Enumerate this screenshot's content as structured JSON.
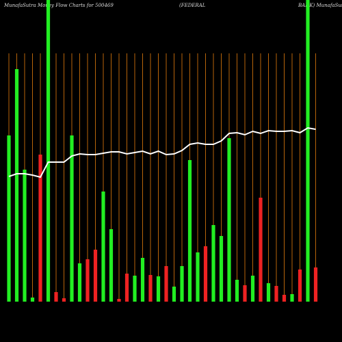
{
  "chart_data": {
    "type": "bar",
    "title": [
      "MunafaSutra  Money Flow  Charts for 500469",
      "(FEDERAL",
      "BANK) MunafaSutra"
    ],
    "categories": [
      null,
      null,
      null,
      null,
      null,
      null,
      null,
      null,
      null,
      null,
      null,
      null,
      null,
      null,
      null,
      null,
      null,
      null,
      null,
      null,
      null,
      null,
      null,
      null,
      null,
      null,
      null,
      null,
      null,
      null,
      null,
      null,
      null,
      null,
      null,
      null,
      null,
      null,
      null,
      null
    ],
    "values": [
      243,
      340,
      193,
      6,
      215,
      441,
      14,
      5,
      243,
      56,
      62,
      76,
      161,
      106,
      4,
      41,
      38,
      64,
      39,
      37,
      52,
      22,
      52,
      207,
      72,
      81,
      112,
      96,
      239,
      32,
      24,
      38,
      152,
      27,
      23,
      10,
      11,
      47,
      441,
      50
    ],
    "colors": [
      "#22ee22",
      "#22ee22",
      "#22ee22",
      "#22ee22",
      "#ee2222",
      "#22ee22",
      "#ee2222",
      "#ee2222",
      "#22ee22",
      "#22ee22",
      "#ee2222",
      "#ee2222",
      "#22ee22",
      "#22ee22",
      "#ee2222",
      "#ee2222",
      "#22ee22",
      "#22ee22",
      "#ee2222",
      "#22ee22",
      "#ee2222",
      "#22ee22",
      "#22ee22",
      "#22ee22",
      "#22ee22",
      "#ee2222",
      "#22ee22",
      "#22ee22",
      "#22ee22",
      "#22ee22",
      "#ee2222",
      "#22ee22",
      "#ee2222",
      "#22ee22",
      "#ee2222",
      "#ee2222",
      "#22ee22",
      "#ee2222",
      "#22ee22",
      "#ee2222"
    ],
    "line_values": [
      183,
      187,
      187,
      185,
      182,
      204,
      204,
      204,
      213,
      216,
      215,
      215,
      217,
      219,
      219,
      216,
      218,
      220,
      216,
      220,
      215,
      216,
      221,
      230,
      232,
      230,
      230,
      235,
      246,
      247,
      244,
      249,
      246,
      250,
      249,
      249,
      250,
      247,
      254,
      252
    ],
    "line_color": "#ffffff",
    "grid_color": "#b8650a",
    "ylim": [
      0,
      441
    ]
  }
}
